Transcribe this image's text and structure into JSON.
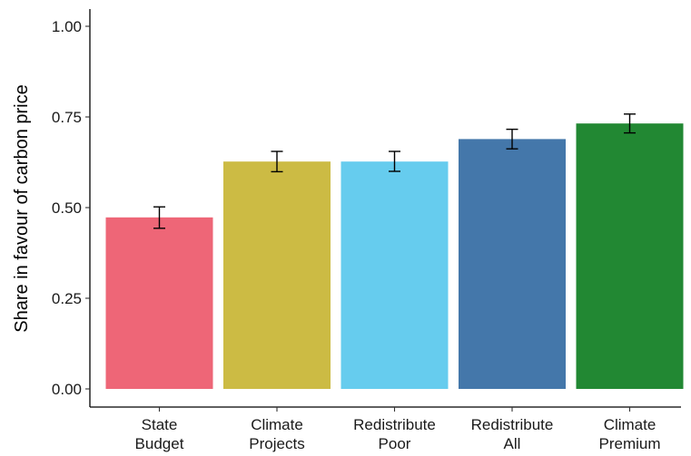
{
  "chart_data": {
    "type": "bar",
    "title": "",
    "xlabel": "",
    "ylabel": "Share in favour of carbon price",
    "ylim": [
      0,
      1.0
    ],
    "yticks": [
      "0.00",
      "0.25",
      "0.50",
      "0.75",
      "1.00"
    ],
    "ytick_values": [
      0,
      0.25,
      0.5,
      0.75,
      1.0
    ],
    "grid": false,
    "categories": [
      [
        "State",
        "Budget"
      ],
      [
        "Climate",
        "Projects"
      ],
      [
        "Redistribute",
        "Poor"
      ],
      [
        "Redistribute",
        "All"
      ],
      [
        "Climate",
        "Premium"
      ]
    ],
    "values": [
      0.473,
      0.627,
      0.627,
      0.689,
      0.732
    ],
    "error_low": [
      0.443,
      0.599,
      0.6,
      0.662,
      0.706
    ],
    "error_high": [
      0.502,
      0.655,
      0.655,
      0.716,
      0.758
    ],
    "colors": [
      "#EE6677",
      "#CCBB44",
      "#66CCEE",
      "#4477AA",
      "#228833"
    ]
  }
}
